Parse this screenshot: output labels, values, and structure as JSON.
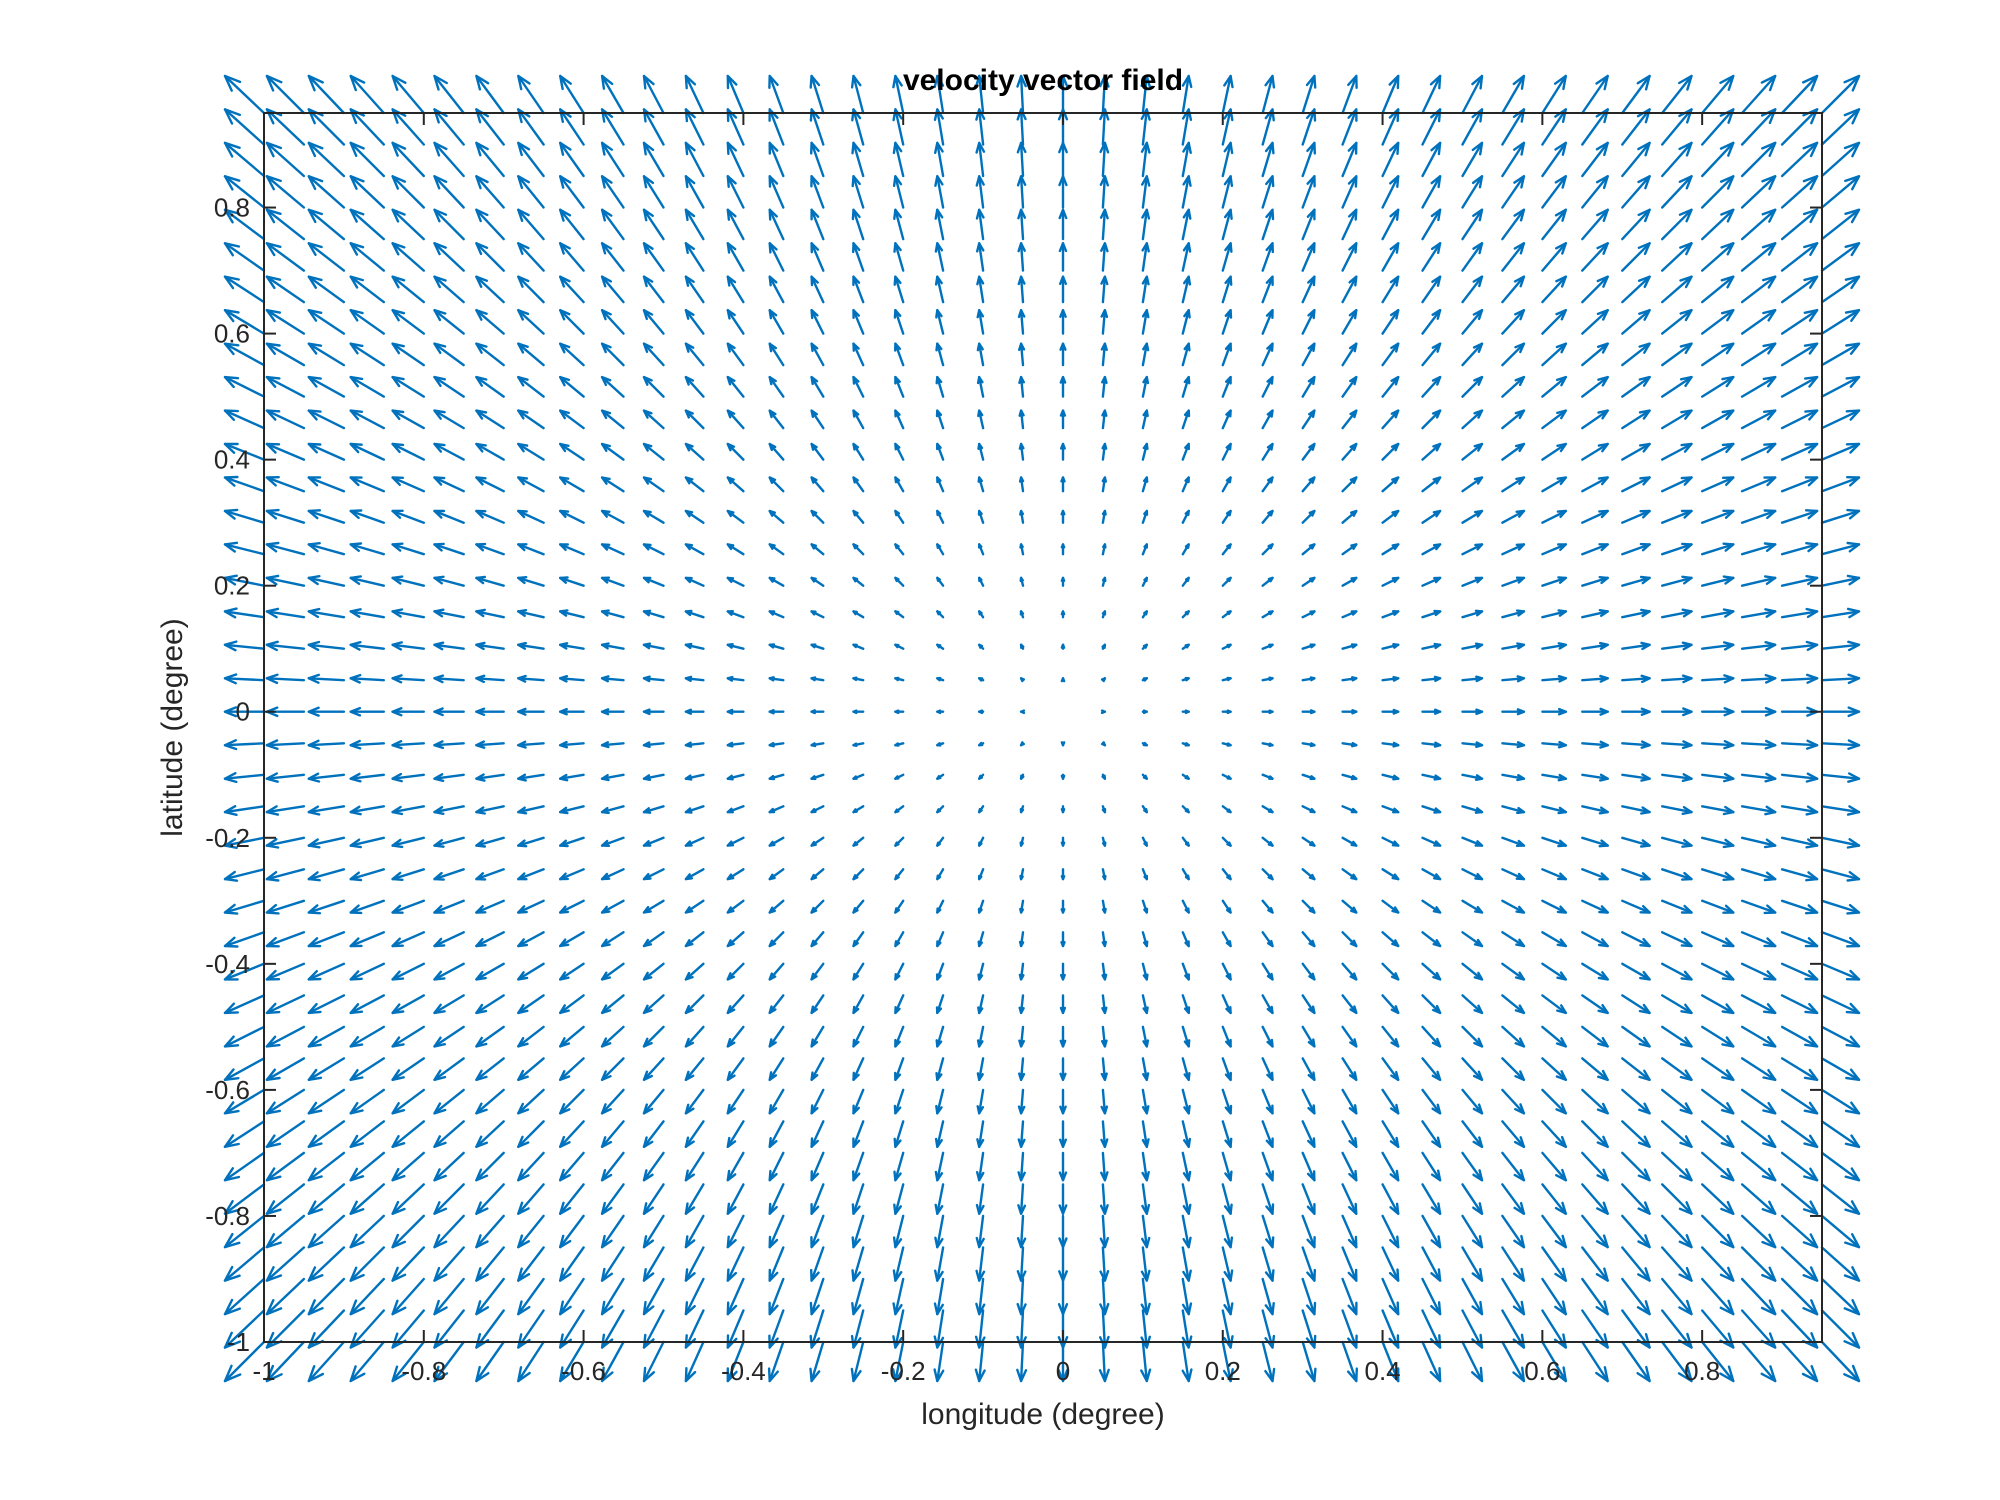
{
  "chart_data": {
    "type": "quiver",
    "title": "velocity vector field",
    "xlabel": "longitude (degree)",
    "ylabel": "latitude (degree)",
    "xlim": [
      -1,
      0.95
    ],
    "ylim": [
      -1,
      0.95
    ],
    "xticks": [
      -1,
      -0.8,
      -0.6,
      -0.4,
      -0.2,
      0,
      0.2,
      0.4,
      0.6,
      0.8
    ],
    "yticks": [
      -1,
      -0.8,
      -0.6,
      -0.4,
      -0.2,
      0,
      0.2,
      0.4,
      0.6,
      0.8
    ],
    "xtick_labels": [
      "-1",
      "-0.8",
      "-0.6",
      "-0.4",
      "-0.2",
      "0",
      "0.2",
      "0.4",
      "0.6",
      "0.8"
    ],
    "ytick_labels": [
      "-1",
      "-0.8",
      "-0.6",
      "-0.4",
      "-0.2",
      "0",
      "0.2",
      "0.4",
      "0.6",
      "0.8"
    ],
    "grid": false,
    "box": true,
    "arrow_color": "#0072BD",
    "axis_color": "#262626",
    "field": {
      "x_start": -1,
      "x_end": 0.95,
      "x_step": 0.05,
      "y_start": -1,
      "y_end": 0.95,
      "y_step": 0.05,
      "u": "x",
      "v": "y",
      "pattern": "radially outward from origin; magnitude grows with distance"
    }
  }
}
